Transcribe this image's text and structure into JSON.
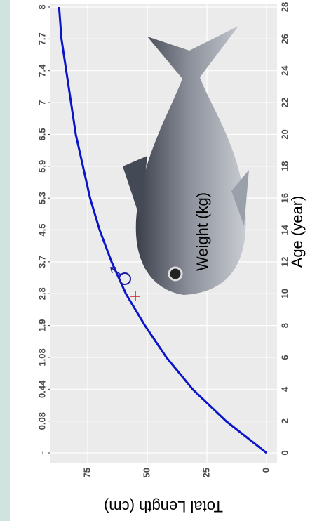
{
  "chart_data": {
    "type": "line",
    "x_label": "Age (year)",
    "y_label": "Total Length (cm)",
    "x2_label": "Weight (kg)",
    "x": [
      0,
      2,
      4,
      6,
      8,
      10,
      12,
      14,
      16,
      18,
      20,
      22,
      24,
      26,
      28
    ],
    "series": [
      {
        "color": "#0a14c8",
        "values": [
          0,
          17,
          31,
          42,
          51,
          59,
          65,
          70,
          74,
          77,
          80,
          82,
          84,
          86,
          87
        ]
      }
    ],
    "xlim": [
      -0.66,
      28.22
    ],
    "xticks": [
      0,
      2,
      4,
      6,
      8,
      10,
      12,
      14,
      16,
      18,
      20,
      22,
      24,
      26,
      28
    ],
    "x2ticks": [
      {
        "value": 0,
        "label": "-"
      },
      {
        "value": 2,
        "label": "0.08"
      },
      {
        "value": 4,
        "label": "0.44"
      },
      {
        "value": 6,
        "label": "1.08"
      },
      {
        "value": 8,
        "label": "1.9"
      },
      {
        "value": 10,
        "label": "2.8"
      },
      {
        "value": 12,
        "label": "3.7"
      },
      {
        "value": 14,
        "label": "4.5"
      },
      {
        "value": 16,
        "label": "5.3"
      },
      {
        "value": 18,
        "label": "5.9"
      },
      {
        "value": 20,
        "label": "6.5"
      },
      {
        "value": 22,
        "label": "7"
      },
      {
        "value": 24,
        "label": "7.4"
      },
      {
        "value": 26,
        "label": "7.7"
      },
      {
        "value": 28,
        "label": "8"
      }
    ],
    "ylim": [
      -4.4,
      90.6
    ],
    "yticks": [
      0,
      25,
      50,
      75
    ],
    "grid": true
  }
}
